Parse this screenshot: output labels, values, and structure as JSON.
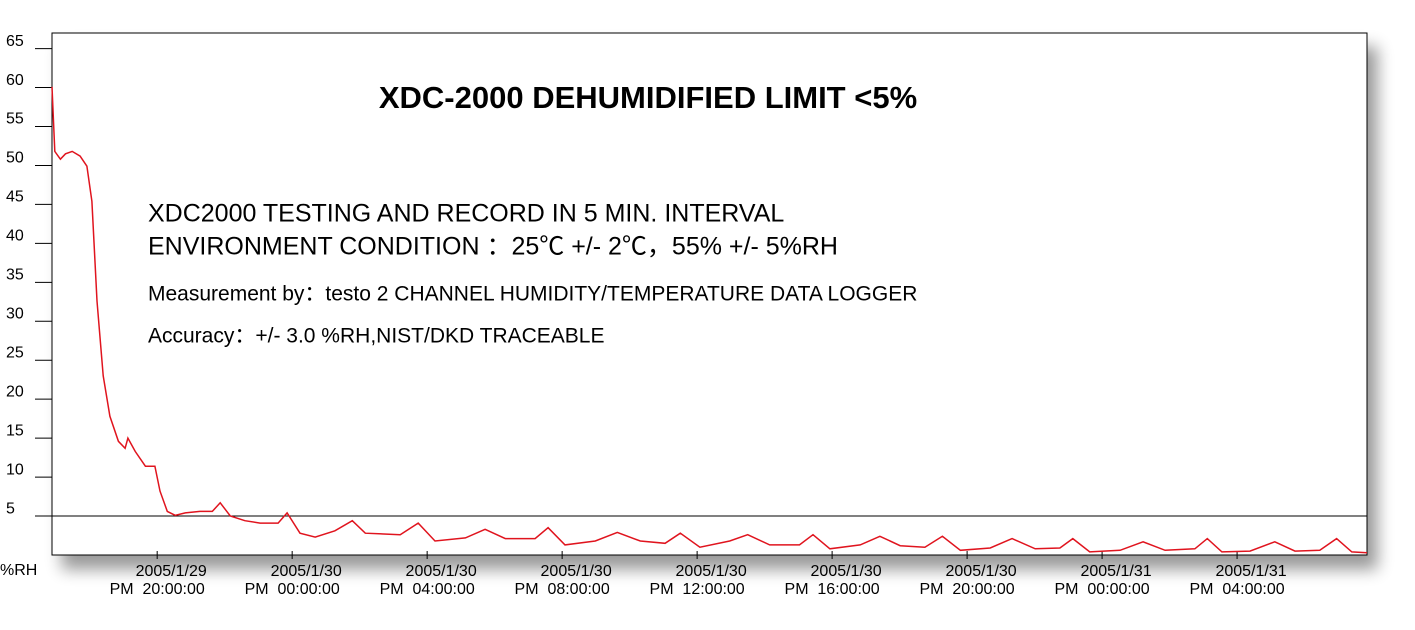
{
  "chart_data": {
    "type": "line",
    "title": "XDC-2000 DEHUMIDIFIED LIMIT <5%",
    "notes": [
      "XDC2000 TESTING AND RECORD IN 5 MIN. INTERVAL",
      "ENVIRONMENT CONDITION ：25℃ +/- 2℃，55% +/- 5%RH",
      "Measurement by：testo 2 CHANNEL HUMIDITY/TEMPERATURE DATA LOGGER",
      "Accuracy：+/- 3.0 %RH,NIST/DKD TRACEABLE"
    ],
    "y_label": "%RH",
    "x": [
      "2005-01-29T16:53",
      "2005-01-29T16:58",
      "2005-01-29T17:08",
      "2005-01-29T17:17",
      "2005-01-29T17:29",
      "2005-01-29T17:43",
      "2005-01-29T17:55",
      "2005-01-29T18:04",
      "2005-01-29T18:13",
      "2005-01-29T18:24",
      "2005-01-29T18:36",
      "2005-01-29T18:51",
      "2005-01-29T19:03",
      "2005-01-29T19:08",
      "2005-01-29T19:21",
      "2005-01-29T19:39",
      "2005-01-29T19:56",
      "2005-01-29T20:05",
      "2005-01-29T20:18",
      "2005-01-29T20:32",
      "2005-01-29T20:50",
      "2005-01-29T21:16",
      "2005-01-29T21:38",
      "2005-01-29T21:52",
      "2005-01-29T22:10",
      "2005-01-29T22:36",
      "2005-01-29T23:03",
      "2005-01-29T23:35",
      "2005-01-29T23:51",
      "2005-01-30T00:14",
      "2005-01-30T00:41",
      "2005-01-30T01:16",
      "2005-01-30T01:47",
      "2005-01-30T02:10",
      "2005-01-30T03:12",
      "2005-01-30T03:44",
      "2005-01-30T04:14",
      "2005-01-30T05:08",
      "2005-01-30T05:43",
      "2005-01-30T06:19",
      "2005-01-30T07:12",
      "2005-01-30T07:35",
      "2005-01-30T08:05",
      "2005-01-30T08:59",
      "2005-01-30T09:38",
      "2005-01-30T10:19",
      "2005-01-30T11:03",
      "2005-01-30T11:30",
      "2005-01-30T12:05",
      "2005-01-30T12:58",
      "2005-01-30T13:30",
      "2005-01-30T14:09",
      "2005-01-30T15:02",
      "2005-01-30T15:26",
      "2005-01-30T15:56",
      "2005-01-30T16:50",
      "2005-01-30T17:25",
      "2005-01-30T18:01",
      "2005-01-30T18:45",
      "2005-01-30T19:16",
      "2005-01-30T19:48",
      "2005-01-30T20:41",
      "2005-01-30T21:20",
      "2005-01-30T22:01",
      "2005-01-30T22:45",
      "2005-01-30T23:08",
      "2005-01-30T23:38",
      "2005-01-31T00:32",
      "2005-01-31T01:13",
      "2005-01-31T01:52",
      "2005-01-31T02:45",
      "2005-01-31T03:07",
      "2005-01-31T03:33",
      "2005-01-31T04:23",
      "2005-01-31T05:07",
      "2005-01-31T05:43",
      "2005-01-31T06:27",
      "2005-01-31T06:57",
      "2005-01-31T07:24",
      "2005-01-31T07:51"
    ],
    "series": [
      {
        "name": "%RH",
        "color": "#e0141e",
        "values": [
          60.1,
          51.8,
          50.8,
          51.5,
          51.8,
          51.2,
          49.9,
          45.4,
          32.6,
          23,
          17.8,
          14.6,
          13.7,
          15,
          13.3,
          11.4,
          11.4,
          8.2,
          5.6,
          5.1,
          5.4,
          5.6,
          5.6,
          6.7,
          5.0,
          4.4,
          4.1,
          4.1,
          5.4,
          2.8,
          2.3,
          3.1,
          4.4,
          2.8,
          2.6,
          4.1,
          1.8,
          2.2,
          3.3,
          2.1,
          2.1,
          3.5,
          1.3,
          1.8,
          2.9,
          1.8,
          1.5,
          2.8,
          1.0,
          1.8,
          2.6,
          1.3,
          1.3,
          2.6,
          0.8,
          1.3,
          2.4,
          1.2,
          1.0,
          2.4,
          0.6,
          0.9,
          2.1,
          0.8,
          0.9,
          2.1,
          0.4,
          0.6,
          1.7,
          0.6,
          0.8,
          2.1,
          0.4,
          0.5,
          1.7,
          0.5,
          0.6,
          2.1,
          0.4,
          0.3
        ]
      }
    ],
    "xlim": [
      "2005-01-29T16:53",
      "2005-01-31T07:51"
    ],
    "xticks": [
      {
        "value": "2005-01-29T20:00",
        "label": [
          "2005/1/29",
          "PM  20:00:00"
        ]
      },
      {
        "value": "2005-01-30T00:00",
        "label": [
          "2005/1/30",
          "PM  00:00:00"
        ]
      },
      {
        "value": "2005-01-30T04:00",
        "label": [
          "2005/1/30",
          "PM  04:00:00"
        ]
      },
      {
        "value": "2005-01-30T08:00",
        "label": [
          "2005/1/30",
          "PM  08:00:00"
        ]
      },
      {
        "value": "2005-01-30T12:00",
        "label": [
          "2005/1/30",
          "PM  12:00:00"
        ]
      },
      {
        "value": "2005-01-30T16:00",
        "label": [
          "2005/1/30",
          "PM  16:00:00"
        ]
      },
      {
        "value": "2005-01-30T20:00",
        "label": [
          "2005/1/30",
          "PM  20:00:00"
        ]
      },
      {
        "value": "2005-01-31T00:00",
        "label": [
          "2005/1/31",
          "PM  00:00:00"
        ]
      },
      {
        "value": "2005-01-31T04:00",
        "label": [
          "2005/1/31",
          "PM  04:00:00"
        ]
      }
    ],
    "ylim": [
      0,
      67
    ],
    "yticks": [
      5,
      10,
      15,
      20,
      25,
      30,
      35,
      40,
      45,
      50,
      55,
      60,
      65
    ],
    "reference_line": 5
  }
}
